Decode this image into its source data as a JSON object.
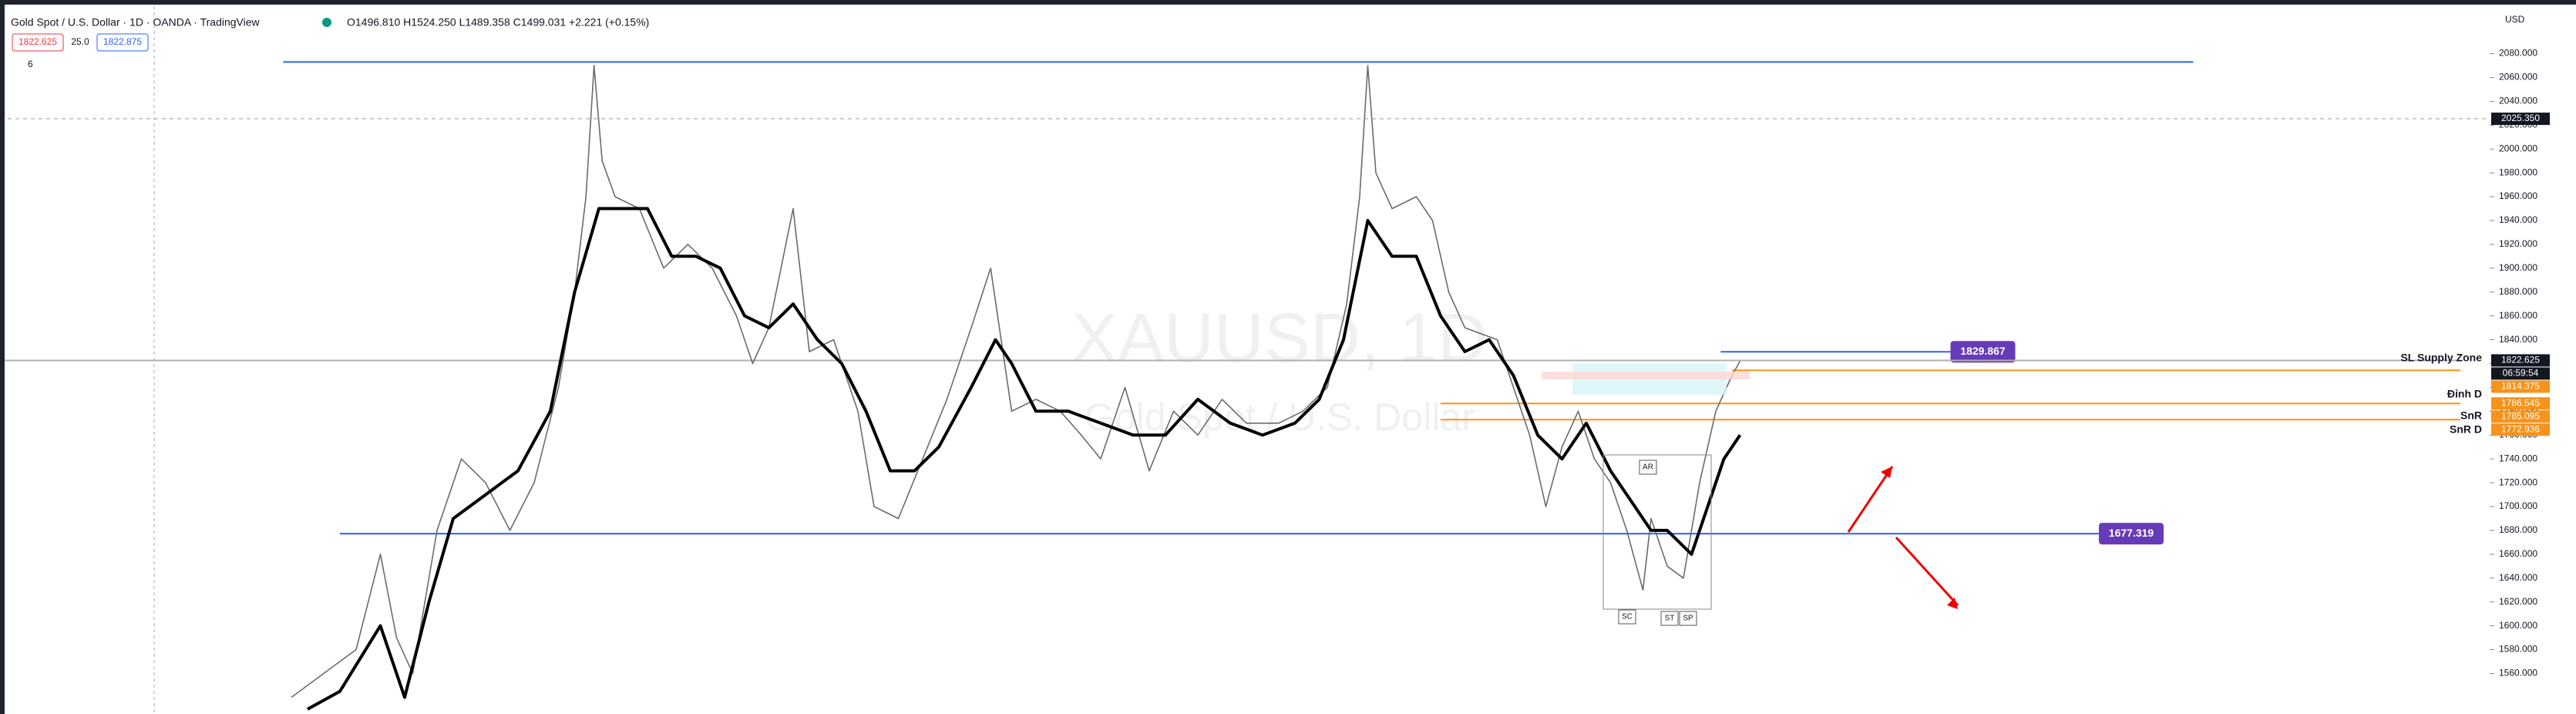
{
  "header": {
    "symbol": "Gold Spot / U.S. Dollar · 1D · OANDA · TradingView",
    "ohlc": "O1496.810 H1524.250 L1489.358 C1499.031 +2.221 (+0.15%)",
    "sell": "1822.625",
    "spread": "25.0",
    "buy": "1822.875",
    "indicator": "6",
    "currency": "USD"
  },
  "chart_data": {
    "type": "line",
    "watermark": {
      "symbol": "XAUUSD, 1D",
      "description": "Gold Spot / U.S. Dollar"
    },
    "xlim": [
      0,
      1520
    ],
    "ylim": [
      1526,
      2125
    ],
    "yticks": [
      {
        "value": 1560,
        "label": "1560.000"
      },
      {
        "value": 1580,
        "label": "1580.000"
      },
      {
        "value": 1600,
        "label": "1600.000"
      },
      {
        "value": 1620,
        "label": "1620.000"
      },
      {
        "value": 1640,
        "label": "1640.000"
      },
      {
        "value": 1660,
        "label": "1660.000"
      },
      {
        "value": 1680,
        "label": "1680.000"
      },
      {
        "value": 1700,
        "label": "1700.000"
      },
      {
        "value": 1720,
        "label": "1720.000"
      },
      {
        "value": 1740,
        "label": "1740.000"
      },
      {
        "value": 1760,
        "label": "1760.000"
      },
      {
        "value": 1780,
        "label": "1780.000"
      },
      {
        "value": 1800,
        "label": "1800.000"
      },
      {
        "value": 1820,
        "label": "1820.000"
      },
      {
        "value": 1840,
        "label": "1840.000"
      },
      {
        "value": 1860,
        "label": "1860.000"
      },
      {
        "value": 1880,
        "label": "1880.000"
      },
      {
        "value": 1900,
        "label": "1900.000"
      },
      {
        "value": 1920,
        "label": "1920.000"
      },
      {
        "value": 1940,
        "label": "1940.000"
      },
      {
        "value": 1960,
        "label": "1960.000"
      },
      {
        "value": 1980,
        "label": "1980.000"
      },
      {
        "value": 2000,
        "label": "2000.000"
      },
      {
        "value": 2020,
        "label": "2020.000"
      },
      {
        "value": 2040,
        "label": "2040.000"
      },
      {
        "value": 2060,
        "label": "2060.000"
      },
      {
        "value": 2080,
        "label": "2080.000"
      }
    ],
    "series": [
      {
        "name": "price",
        "color": "#6b6b6b",
        "width": 1.6,
        "x": [
          180,
          200,
          220,
          235,
          245,
          255,
          270,
          285,
          300,
          315,
          330,
          345,
          355,
          362,
          367,
          372,
          380,
          395,
          410,
          425,
          440,
          455,
          465,
          475,
          490,
          500,
          515,
          530,
          540,
          555,
          570,
          585,
          600,
          612,
          625,
          640,
          655,
          668,
          680,
          695,
          710,
          725,
          740,
          755,
          770,
          790,
          805,
          820,
          832,
          840,
          845,
          850,
          860,
          875,
          885,
          895,
          905,
          925,
          945,
          955,
          965,
          975,
          985,
          995,
          1005,
          1015,
          1020,
          1030,
          1040,
          1050,
          1060,
          1070,
          1075
        ],
        "values": [
          1540,
          1560,
          1580,
          1660,
          1590,
          1560,
          1680,
          1740,
          1720,
          1680,
          1720,
          1800,
          1880,
          1960,
          2070,
          1990,
          1960,
          1950,
          1900,
          1920,
          1900,
          1860,
          1820,
          1850,
          1950,
          1830,
          1840,
          1780,
          1700,
          1690,
          1740,
          1790,
          1850,
          1900,
          1780,
          1790,
          1780,
          1760,
          1740,
          1800,
          1730,
          1780,
          1760,
          1790,
          1770,
          1770,
          1780,
          1800,
          1870,
          1960,
          2070,
          1980,
          1950,
          1960,
          1940,
          1880,
          1850,
          1840,
          1760,
          1700,
          1750,
          1780,
          1740,
          1720,
          1680,
          1630,
          1690,
          1650,
          1640,
          1720,
          1780,
          1810,
          1822
        ]
      },
      {
        "name": "ma",
        "color": "#000000",
        "width": 4,
        "x": [
          190,
          210,
          235,
          250,
          265,
          280,
          300,
          320,
          340,
          355,
          370,
          385,
          400,
          415,
          430,
          445,
          460,
          475,
          490,
          505,
          520,
          535,
          550,
          565,
          580,
          600,
          615,
          625,
          640,
          660,
          680,
          700,
          720,
          740,
          760,
          780,
          800,
          815,
          830,
          845,
          860,
          875,
          890,
          905,
          920,
          935,
          950,
          965,
          980,
          995,
          1010,
          1020,
          1030,
          1045,
          1055,
          1065,
          1075
        ],
        "values": [
          1530,
          1545,
          1600,
          1540,
          1620,
          1690,
          1710,
          1730,
          1780,
          1880,
          1950,
          1950,
          1950,
          1910,
          1910,
          1900,
          1860,
          1850,
          1870,
          1840,
          1820,
          1780,
          1730,
          1730,
          1750,
          1800,
          1840,
          1820,
          1780,
          1780,
          1770,
          1760,
          1760,
          1790,
          1770,
          1760,
          1770,
          1790,
          1840,
          1940,
          1910,
          1910,
          1860,
          1830,
          1840,
          1810,
          1760,
          1740,
          1770,
          1730,
          1700,
          1680,
          1680,
          1660,
          1700,
          1740,
          1760
        ]
      }
    ],
    "levels": [
      {
        "value": 2073,
        "color": "#2962ff"
      },
      {
        "value": 1677.319,
        "color": "#2962ff",
        "label": "1677.319"
      },
      {
        "value": 1829.867,
        "color": "#2962ff",
        "label": "1829.867"
      },
      {
        "value": 1822.625,
        "color": "#b0b0b0"
      },
      {
        "value": 1814.375,
        "color": "#f7931a"
      },
      {
        "value": 1786.545,
        "color": "#f7931a"
      },
      {
        "value": 1772.936,
        "color": "#f7931a"
      }
    ],
    "price_tags": [
      {
        "value": 2025.35,
        "label": "2025.350",
        "color": "#131722"
      },
      {
        "value": 1822.625,
        "label": "1822.625",
        "color": "#131722"
      },
      {
        "value": 1814.375,
        "label": "1814.375",
        "color": "#f7931a"
      },
      {
        "value": 1786.545,
        "label": "1786.545",
        "color": "#f7931a"
      },
      {
        "value": 1785.095,
        "label": "1785.095",
        "color": "#f7931a"
      },
      {
        "value": 1772.936,
        "label": "1772.936",
        "color": "#f7931a"
      }
    ],
    "countdown": "06:59:54",
    "zone_labels": [
      "SL Supply Zone",
      "Đỉnh D",
      "SnR",
      "SnR D"
    ],
    "annotations": [
      "AR",
      "SC",
      "ST",
      "SP"
    ]
  }
}
